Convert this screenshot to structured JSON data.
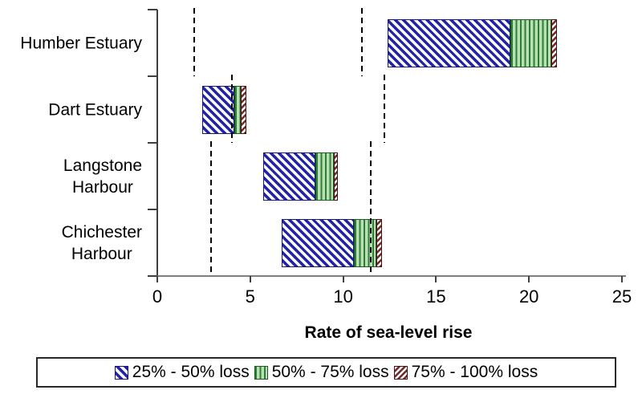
{
  "chart_data": {
    "type": "bar",
    "orientation": "horizontal-stacked-floating",
    "title": "",
    "xlabel": "Rate of sea-level rise",
    "xlim": [
      0,
      25
    ],
    "xticks": [
      0,
      5,
      10,
      15,
      20,
      25
    ],
    "grid": false,
    "legend_position": "bottom",
    "categories": [
      "Humber Estuary",
      "Dart Estuary",
      "Langstone Harbour",
      "Chichester Harbour"
    ],
    "category_label_lines": [
      [
        "Humber Estuary"
      ],
      [
        "Dart Estuary"
      ],
      [
        "Langstone",
        "Harbour"
      ],
      [
        "Chichester",
        "Harbour"
      ]
    ],
    "series": [
      {
        "name": "25% - 50% loss",
        "pattern": "diagonal-backslash-hatch",
        "stripe_color": "#2323a8",
        "fill_color": "#ffffff",
        "ranges": [
          [
            12.4,
            19.0
          ],
          [
            2.4,
            4.15
          ],
          [
            5.7,
            8.5
          ],
          [
            6.7,
            10.6
          ]
        ]
      },
      {
        "name": "50% - 75% loss",
        "pattern": "vertical-stripe-hatch",
        "stripe_color": "#2e7d34",
        "fill_color": "#b9e0b4",
        "ranges": [
          [
            19.0,
            21.2
          ],
          [
            4.15,
            4.5
          ],
          [
            8.5,
            9.5
          ],
          [
            10.6,
            11.8
          ]
        ]
      },
      {
        "name": "75% - 100% loss",
        "pattern": "diagonal-slash-hatch",
        "stripe_color": "#7b2424",
        "fill_color": "#ffffff",
        "ranges": [
          [
            21.2,
            21.5
          ],
          [
            4.5,
            4.8
          ],
          [
            9.5,
            9.7
          ],
          [
            11.8,
            12.1
          ]
        ]
      }
    ],
    "dashed_reference_lines": [
      {
        "value": 2.0,
        "row_start": 0,
        "row_end": 0
      },
      {
        "value": 11.0,
        "row_start": 0,
        "row_end": 0
      },
      {
        "value": 4.0,
        "row_start": 1,
        "row_end": 1
      },
      {
        "value": 12.2,
        "row_start": 1,
        "row_end": 1
      },
      {
        "value": 2.9,
        "row_start": 2,
        "row_end": 3
      },
      {
        "value": 11.5,
        "row_start": 2,
        "row_end": 3
      }
    ],
    "legend_entries": [
      "25% - 50% loss",
      "50% - 75% loss",
      "75% - 100% loss"
    ]
  }
}
